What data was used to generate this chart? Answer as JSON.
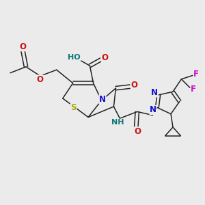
{
  "bg_color": "#ebebeb",
  "bond_color": "#222222",
  "atoms": {
    "S": {
      "color": "#aaaa00",
      "fontsize": 8.5
    },
    "N": {
      "color": "#1111cc",
      "fontsize": 8.5
    },
    "O": {
      "color": "#cc1111",
      "fontsize": 8.5
    },
    "F": {
      "color": "#cc11cc",
      "fontsize": 8.5
    },
    "H": {
      "color": "#117777",
      "fontsize": 8.5
    }
  },
  "lw": 1.1,
  "figsize": [
    3.0,
    3.0
  ],
  "dpi": 100
}
